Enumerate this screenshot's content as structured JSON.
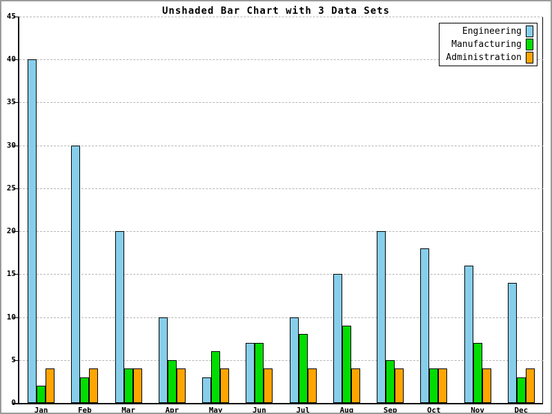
{
  "title": "Unshaded Bar Chart with 3 Data Sets",
  "chart_data": {
    "type": "bar",
    "title": "Unshaded Bar Chart with 3 Data Sets",
    "categories": [
      "Jan",
      "Feb",
      "Mar",
      "Apr",
      "May",
      "Jun",
      "Jul",
      "Aug",
      "Sep",
      "Oct",
      "Nov",
      "Dec"
    ],
    "series": [
      {
        "name": "Engineering",
        "color": "#87CEEB",
        "values": [
          40,
          30,
          20,
          10,
          3,
          7,
          10,
          15,
          20,
          18,
          16,
          14
        ]
      },
      {
        "name": "Manufacturing",
        "color": "#00DD00",
        "values": [
          2,
          3,
          4,
          5,
          6,
          7,
          8,
          9,
          5,
          4,
          7,
          3
        ]
      },
      {
        "name": "Administration",
        "color": "#FFA500",
        "values": [
          4,
          4,
          4,
          4,
          4,
          4,
          4,
          4,
          4,
          4,
          4,
          4
        ]
      }
    ],
    "xlabel": "",
    "ylabel": "",
    "ylim": [
      0,
      45
    ],
    "yticks": [
      0,
      5,
      10,
      15,
      20,
      25,
      30,
      35,
      40,
      45
    ],
    "grid": "horizontal-dashed",
    "gridline_color": "#b4b4b4",
    "bar_outline_color": "#000000",
    "axis_color": "#000000",
    "background_color": "#ffffff",
    "legend_position": "top-right",
    "legend": [
      "Engineering",
      "Manufacturing",
      "Administration"
    ]
  }
}
